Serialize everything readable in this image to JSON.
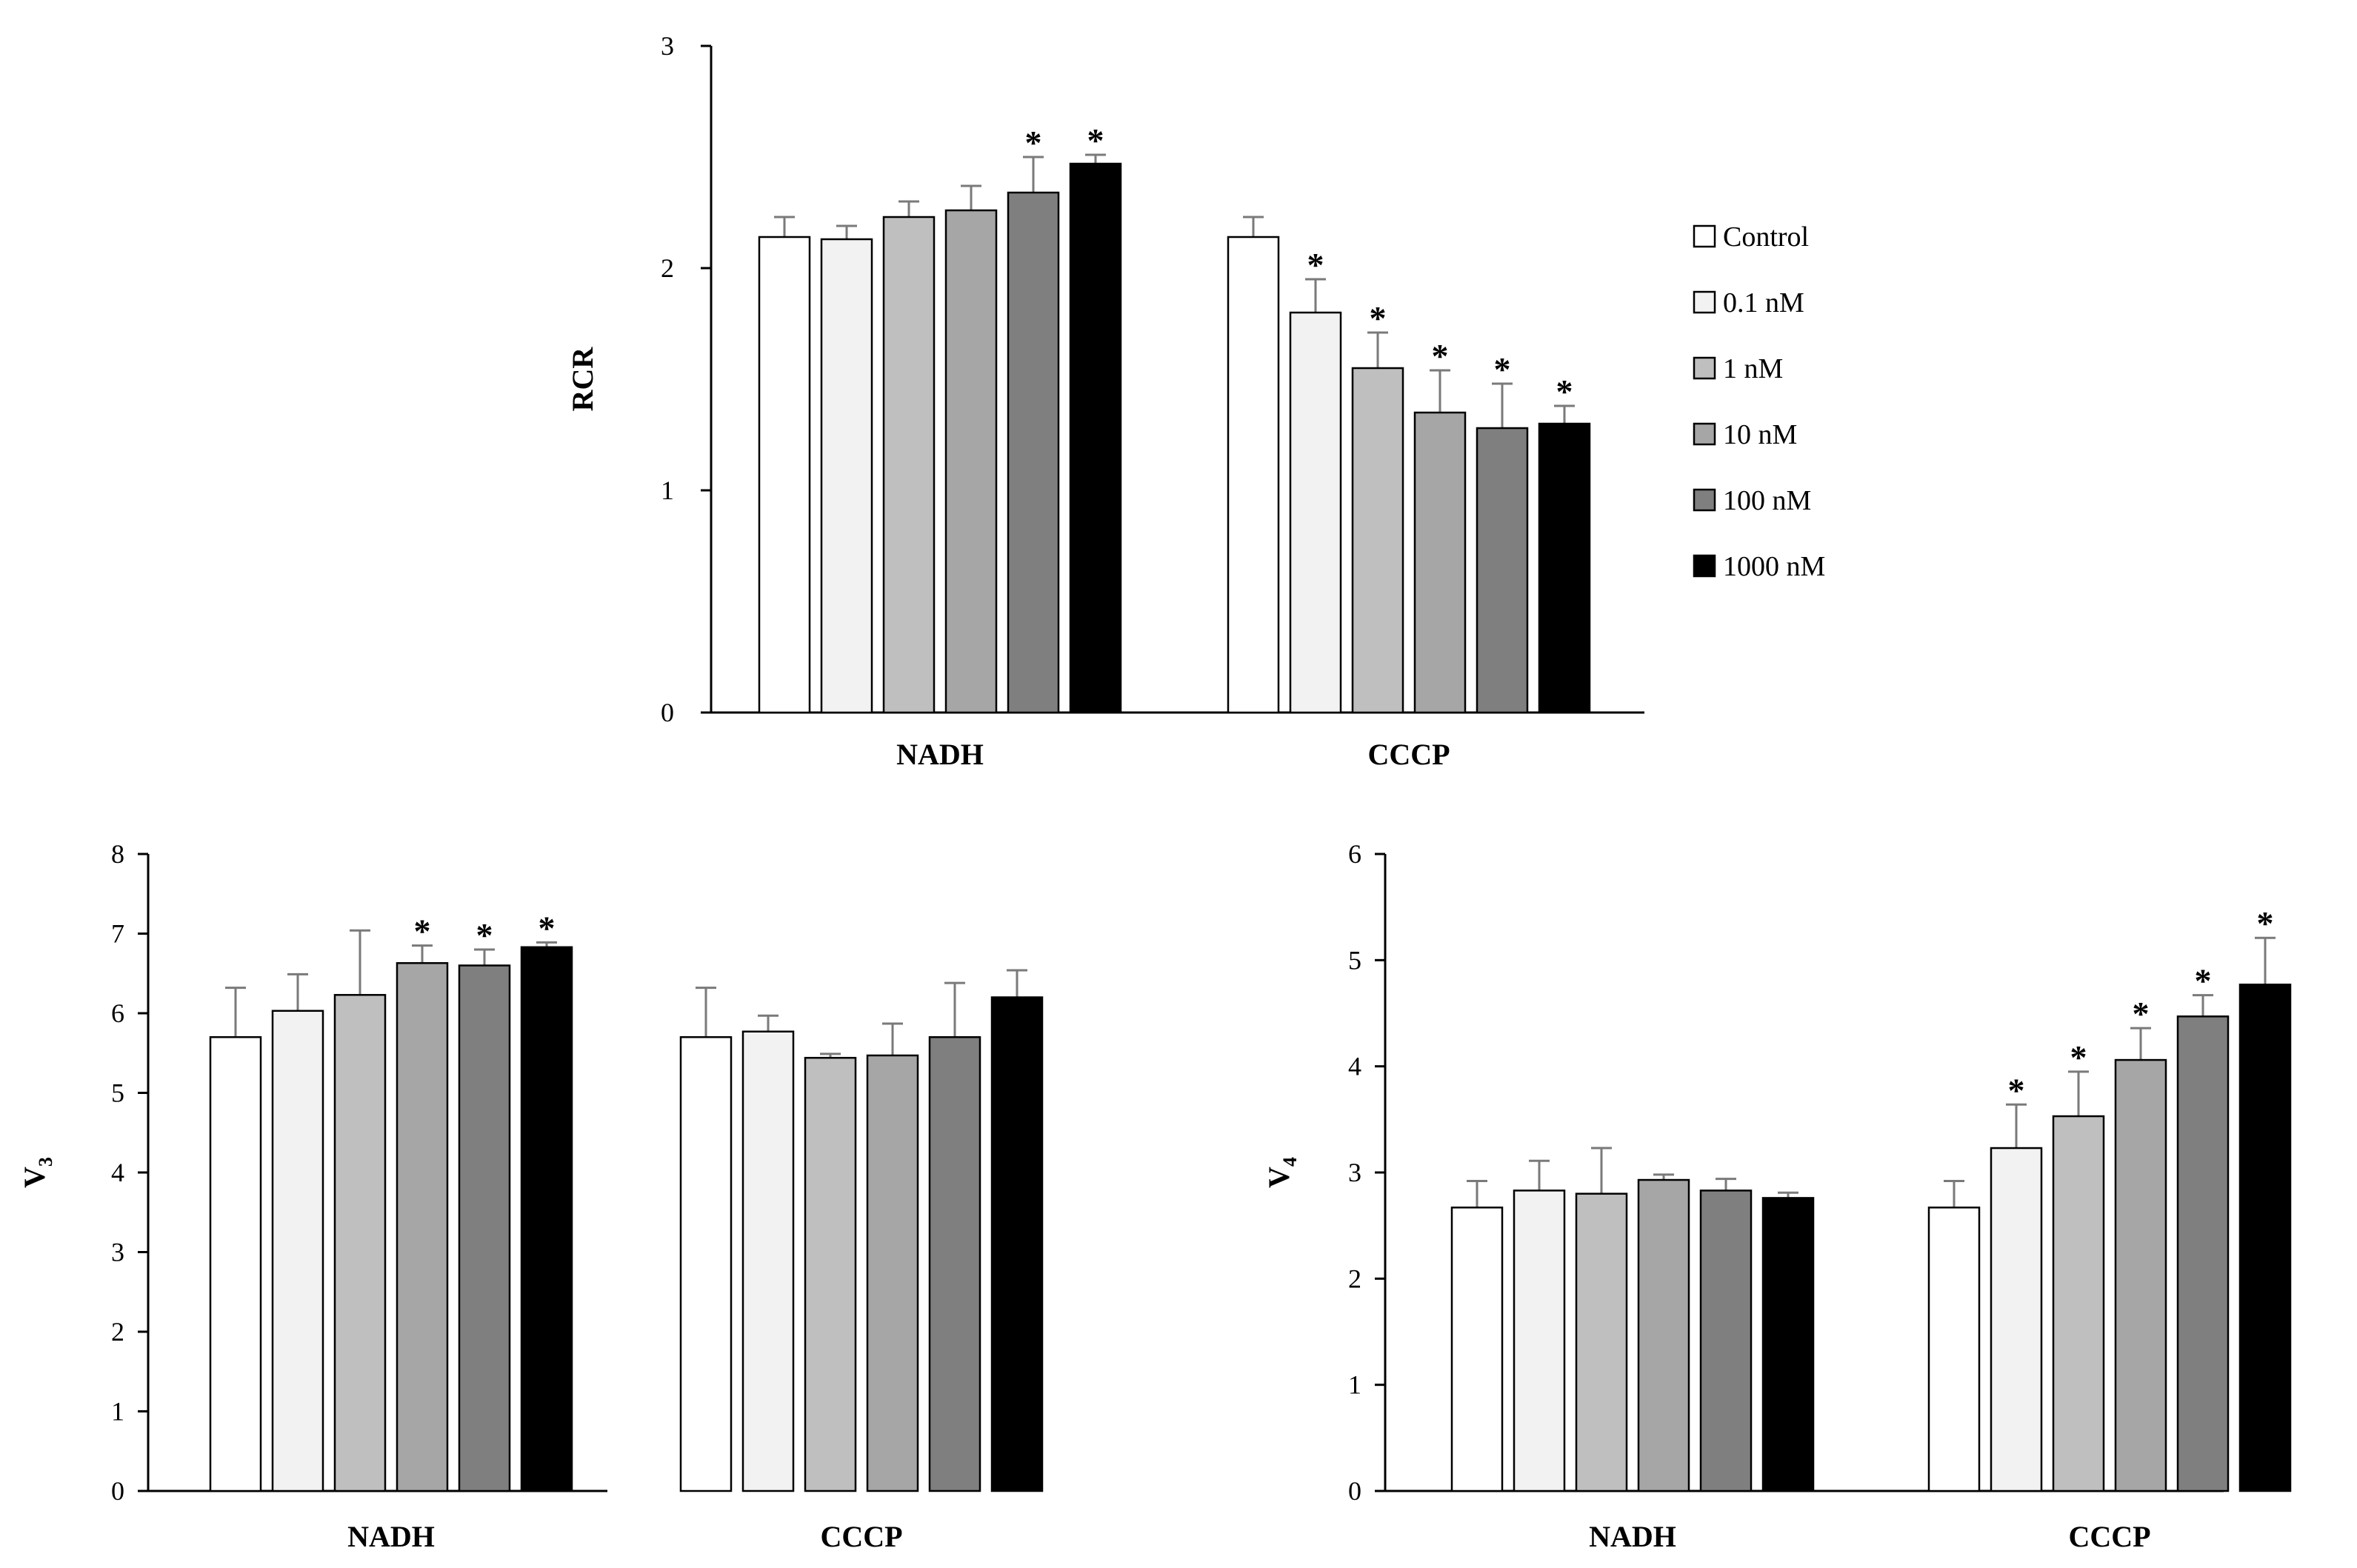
{
  "chart_data": [
    {
      "id": "rcr",
      "type": "bar",
      "ylabel": "RCR",
      "ylabel_sub": "",
      "ylim": [
        0,
        3
      ],
      "yticks": [
        "0",
        "1",
        "2",
        "3"
      ],
      "categories": [
        "NADH",
        "CCCP"
      ],
      "series": [
        {
          "name": "Control",
          "values": [
            2.14,
            2.14
          ],
          "errors": [
            0.09,
            0.09
          ],
          "sig": [
            false,
            false
          ]
        },
        {
          "name": "0.1 nM",
          "values": [
            2.13,
            1.8
          ],
          "errors": [
            0.06,
            0.15
          ],
          "sig": [
            false,
            true
          ]
        },
        {
          "name": "1 nM",
          "values": [
            2.23,
            1.55
          ],
          "errors": [
            0.07,
            0.16
          ],
          "sig": [
            false,
            true
          ]
        },
        {
          "name": "10 nM",
          "values": [
            2.26,
            1.35
          ],
          "errors": [
            0.11,
            0.19
          ],
          "sig": [
            false,
            true
          ]
        },
        {
          "name": "100 nM",
          "values": [
            2.34,
            1.28
          ],
          "errors": [
            0.16,
            0.2
          ],
          "sig": [
            true,
            true
          ]
        },
        {
          "name": "1000 nM",
          "values": [
            2.47,
            1.3
          ],
          "errors": [
            0.04,
            0.08
          ],
          "sig": [
            true,
            true
          ]
        }
      ]
    },
    {
      "id": "v3",
      "type": "bar",
      "ylabel": "V",
      "ylabel_sub": "3",
      "ylim": [
        0,
        8
      ],
      "yticks": [
        "0",
        "1",
        "2",
        "3",
        "4",
        "5",
        "6",
        "7",
        "8"
      ],
      "categories": [
        "NADH",
        "CCCP"
      ],
      "series": [
        {
          "name": "Control",
          "values": [
            5.7,
            5.7
          ],
          "errors": [
            0.62,
            0.62
          ],
          "sig": [
            false,
            false
          ]
        },
        {
          "name": "0.1 nM",
          "values": [
            6.03,
            5.77
          ],
          "errors": [
            0.46,
            0.2
          ],
          "sig": [
            false,
            false
          ]
        },
        {
          "name": "1 nM",
          "values": [
            6.23,
            5.44
          ],
          "errors": [
            0.81,
            0.05
          ],
          "sig": [
            false,
            false
          ]
        },
        {
          "name": "10 nM",
          "values": [
            6.63,
            5.47
          ],
          "errors": [
            0.22,
            0.4
          ],
          "sig": [
            true,
            false
          ]
        },
        {
          "name": "100 nM",
          "values": [
            6.6,
            5.7
          ],
          "errors": [
            0.2,
            0.68
          ],
          "sig": [
            true,
            false
          ]
        },
        {
          "name": "1000 nM",
          "values": [
            6.83,
            6.2
          ],
          "errors": [
            0.06,
            0.34
          ],
          "sig": [
            true,
            false
          ]
        }
      ]
    },
    {
      "id": "v4",
      "type": "bar",
      "ylabel": "V",
      "ylabel_sub": "4",
      "ylim": [
        0,
        6
      ],
      "yticks": [
        "0",
        "1",
        "2",
        "3",
        "4",
        "5",
        "6"
      ],
      "categories": [
        "NADH",
        "CCCP"
      ],
      "series": [
        {
          "name": "Control",
          "values": [
            2.67,
            2.67
          ],
          "errors": [
            0.25,
            0.25
          ],
          "sig": [
            false,
            false
          ]
        },
        {
          "name": "0.1 nM",
          "values": [
            2.83,
            3.23
          ],
          "errors": [
            0.28,
            0.41
          ],
          "sig": [
            false,
            true
          ]
        },
        {
          "name": "1 nM",
          "values": [
            2.8,
            3.53
          ],
          "errors": [
            0.43,
            0.42
          ],
          "sig": [
            false,
            true
          ]
        },
        {
          "name": "10 nM",
          "values": [
            2.93,
            4.06
          ],
          "errors": [
            0.05,
            0.3
          ],
          "sig": [
            false,
            true
          ]
        },
        {
          "name": "100 nM",
          "values": [
            2.83,
            4.47
          ],
          "errors": [
            0.11,
            0.2
          ],
          "sig": [
            false,
            true
          ]
        },
        {
          "name": "1000 nM",
          "values": [
            2.76,
            4.77
          ],
          "errors": [
            0.05,
            0.44
          ],
          "sig": [
            false,
            true
          ]
        }
      ]
    }
  ],
  "legend": {
    "items": [
      {
        "label": "Control",
        "color": "#ffffff"
      },
      {
        "label": "0.1 nM",
        "color": "#f2f2f2"
      },
      {
        "label": "1 nM",
        "color": "#bfbfbf"
      },
      {
        "label": "10 nM",
        "color": "#a6a6a6"
      },
      {
        "label": "100 nM",
        "color": "#7f7f7f"
      },
      {
        "label": "1000 nM",
        "color": "#000000"
      }
    ]
  },
  "significance_marker": "*"
}
